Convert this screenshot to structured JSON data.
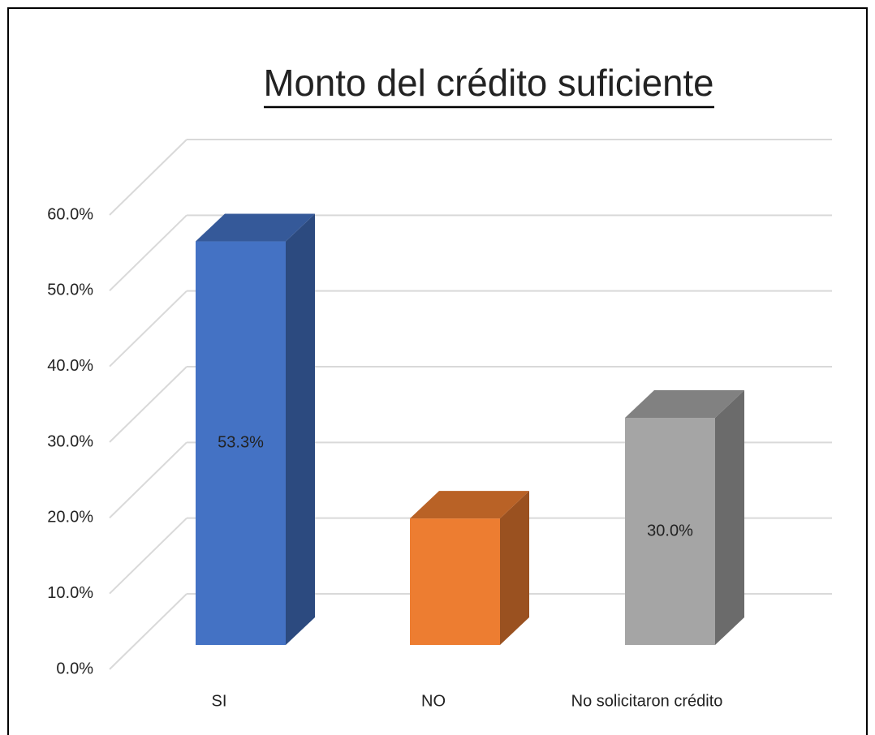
{
  "chart_data": {
    "type": "bar3d",
    "title": "Monto del crédito suficiente",
    "categories": [
      "SI",
      "NO",
      "No solicitaron crédito"
    ],
    "values": [
      53.3,
      16.7,
      30.0
    ],
    "value_labels": [
      "53.3%",
      null,
      "30.0%"
    ],
    "colors": [
      "#4472c4",
      "#ed7d31",
      "#a5a5a5"
    ],
    "ylim": [
      0,
      60
    ],
    "yticks": [
      {
        "value": 0,
        "label": "0.0%"
      },
      {
        "value": 10,
        "label": "10.0%"
      },
      {
        "value": 20,
        "label": "20.0%"
      },
      {
        "value": 30,
        "label": "30.0%"
      },
      {
        "value": 40,
        "label": "40.0%"
      },
      {
        "value": 50,
        "label": "50.0%"
      },
      {
        "value": 60,
        "label": "60.0%"
      }
    ],
    "grid": true
  }
}
